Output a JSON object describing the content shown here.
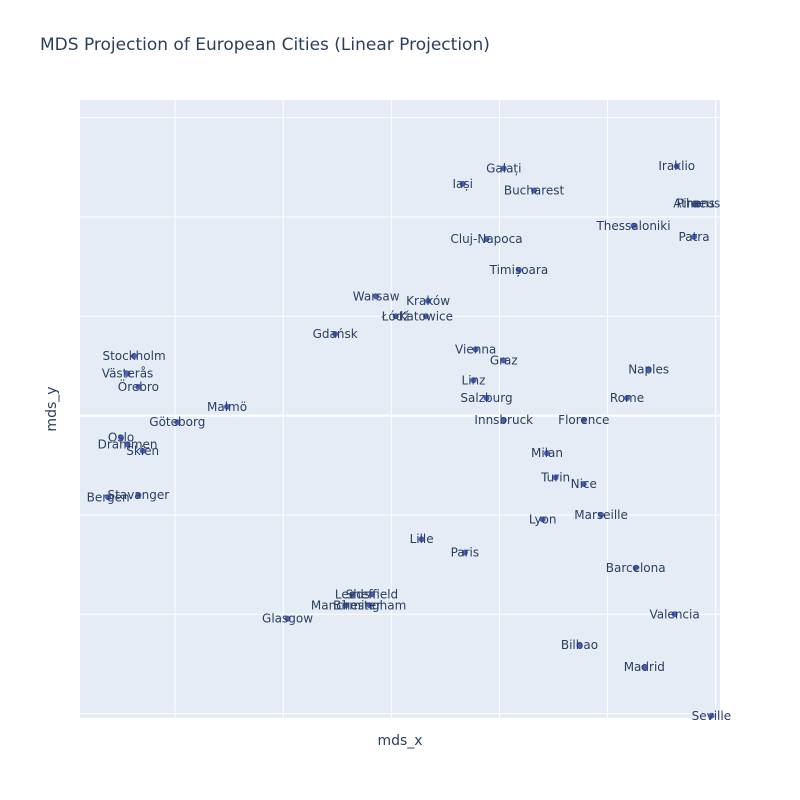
{
  "chart_data": {
    "type": "scatter",
    "title": "MDS Projection of European Cities (Linear Projection)",
    "xlabel": "mds_x",
    "ylabel": "mds_y",
    "xlim": [
      -0.88,
      2.08
    ],
    "ylim": [
      -1.37,
      1.43
    ],
    "grid": true,
    "x_gridlines": [
      -0.44,
      0.06,
      0.56,
      1.06,
      1.56,
      2.06
    ],
    "y_gridlines": [
      -1.35,
      -0.9,
      -0.45,
      0.0,
      0.45,
      0.9,
      1.35
    ],
    "marker_color": "#4a5fc1",
    "plot_background": "#e5ecf6",
    "points": [
      {
        "label": "Galați",
        "x": 1.08,
        "y": 1.12
      },
      {
        "label": "Iraklio",
        "x": 1.88,
        "y": 1.13
      },
      {
        "label": "Iași",
        "x": 0.89,
        "y": 1.05
      },
      {
        "label": "Bucharest",
        "x": 1.22,
        "y": 1.02
      },
      {
        "label": "Athens",
        "x": 1.96,
        "y": 0.96
      },
      {
        "label": "Piraeus",
        "x": 1.98,
        "y": 0.96
      },
      {
        "label": "Thessaloniki",
        "x": 1.68,
        "y": 0.86
      },
      {
        "label": "Patra",
        "x": 1.96,
        "y": 0.81
      },
      {
        "label": "Cluj-Napoca",
        "x": 1.0,
        "y": 0.8
      },
      {
        "label": "Timișoara",
        "x": 1.15,
        "y": 0.66
      },
      {
        "label": "Warsaw",
        "x": 0.49,
        "y": 0.54
      },
      {
        "label": "Kraków",
        "x": 0.73,
        "y": 0.52
      },
      {
        "label": "Łódź",
        "x": 0.58,
        "y": 0.45
      },
      {
        "label": "Katowice",
        "x": 0.72,
        "y": 0.45
      },
      {
        "label": "Gdańsk",
        "x": 0.3,
        "y": 0.37
      },
      {
        "label": "Vienna",
        "x": 0.95,
        "y": 0.3
      },
      {
        "label": "Graz",
        "x": 1.08,
        "y": 0.25
      },
      {
        "label": "Stockholm",
        "x": -0.63,
        "y": 0.27
      },
      {
        "label": "Naples",
        "x": 1.75,
        "y": 0.21
      },
      {
        "label": "Västerås",
        "x": -0.66,
        "y": 0.19
      },
      {
        "label": "Linz",
        "x": 0.94,
        "y": 0.16
      },
      {
        "label": "Örebro",
        "x": -0.61,
        "y": 0.13
      },
      {
        "label": "Salzburg",
        "x": 1.0,
        "y": 0.08
      },
      {
        "label": "Rome",
        "x": 1.65,
        "y": 0.08
      },
      {
        "label": "Malmö",
        "x": -0.2,
        "y": 0.04
      },
      {
        "label": "Göteborg",
        "x": -0.43,
        "y": -0.03
      },
      {
        "label": "Innsbruck",
        "x": 1.08,
        "y": -0.02
      },
      {
        "label": "Florence",
        "x": 1.45,
        "y": -0.02
      },
      {
        "label": "Oslo",
        "x": -0.69,
        "y": -0.1
      },
      {
        "label": "Drammen",
        "x": -0.66,
        "y": -0.13
      },
      {
        "label": "Skien",
        "x": -0.59,
        "y": -0.16
      },
      {
        "label": "Milan",
        "x": 1.28,
        "y": -0.17
      },
      {
        "label": "Turin",
        "x": 1.32,
        "y": -0.28
      },
      {
        "label": "Nice",
        "x": 1.45,
        "y": -0.31
      },
      {
        "label": "Bergen",
        "x": -0.75,
        "y": -0.37
      },
      {
        "label": "Stavanger",
        "x": -0.61,
        "y": -0.36
      },
      {
        "label": "Marseille",
        "x": 1.53,
        "y": -0.45
      },
      {
        "label": "Lyon",
        "x": 1.26,
        "y": -0.47
      },
      {
        "label": "Lille",
        "x": 0.7,
        "y": -0.56
      },
      {
        "label": "Paris",
        "x": 0.9,
        "y": -0.62
      },
      {
        "label": "Barcelona",
        "x": 1.69,
        "y": -0.69
      },
      {
        "label": "Leeds",
        "x": 0.38,
        "y": -0.81
      },
      {
        "label": "Sheffield",
        "x": 0.47,
        "y": -0.81
      },
      {
        "label": "Manchester",
        "x": 0.35,
        "y": -0.86
      },
      {
        "label": "Birmingham",
        "x": 0.46,
        "y": -0.86
      },
      {
        "label": "Glasgow",
        "x": 0.08,
        "y": -0.92
      },
      {
        "label": "Valencia",
        "x": 1.87,
        "y": -0.9
      },
      {
        "label": "Bilbao",
        "x": 1.43,
        "y": -1.04
      },
      {
        "label": "Madrid",
        "x": 1.73,
        "y": -1.14
      },
      {
        "label": "Seville",
        "x": 2.04,
        "y": -1.36
      }
    ]
  }
}
